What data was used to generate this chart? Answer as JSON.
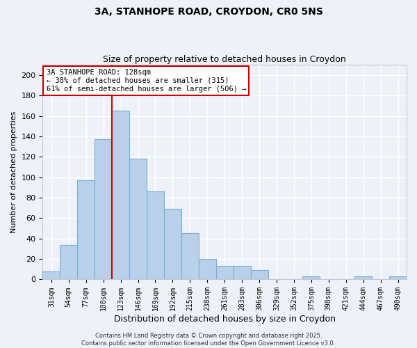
{
  "title_line1": "3A, STANHOPE ROAD, CROYDON, CR0 5NS",
  "title_line2": "Size of property relative to detached houses in Croydon",
  "xlabel": "Distribution of detached houses by size in Croydon",
  "ylabel": "Number of detached properties",
  "categories": [
    "31sqm",
    "54sqm",
    "77sqm",
    "100sqm",
    "123sqm",
    "146sqm",
    "169sqm",
    "192sqm",
    "215sqm",
    "238sqm",
    "261sqm",
    "283sqm",
    "306sqm",
    "329sqm",
    "352sqm",
    "375sqm",
    "398sqm",
    "421sqm",
    "444sqm",
    "467sqm",
    "490sqm"
  ],
  "values": [
    8,
    34,
    97,
    137,
    165,
    118,
    86,
    69,
    45,
    20,
    13,
    13,
    9,
    0,
    0,
    3,
    0,
    0,
    3,
    0,
    3
  ],
  "bar_color": "#b8d0ea",
  "bar_edge_color": "#7aafd4",
  "bar_width": 1.0,
  "vline_x": 4.0,
  "vline_color": "#cc0000",
  "ylim": [
    0,
    210
  ],
  "yticks": [
    0,
    20,
    40,
    60,
    80,
    100,
    120,
    140,
    160,
    180,
    200
  ],
  "annotation_title": "3A STANHOPE ROAD: 128sqm",
  "annotation_line2": "← 38% of detached houses are smaller (315)",
  "annotation_line3": "61% of semi-detached houses are larger (506) →",
  "footer_line1": "Contains HM Land Registry data © Crown copyright and database right 2025.",
  "footer_line2": "Contains public sector information licensed under the Open Government Licence v3.0.",
  "background_color": "#eef2f8",
  "grid_color": "#ffffff",
  "title_fontsize": 10,
  "subtitle_fontsize": 9
}
